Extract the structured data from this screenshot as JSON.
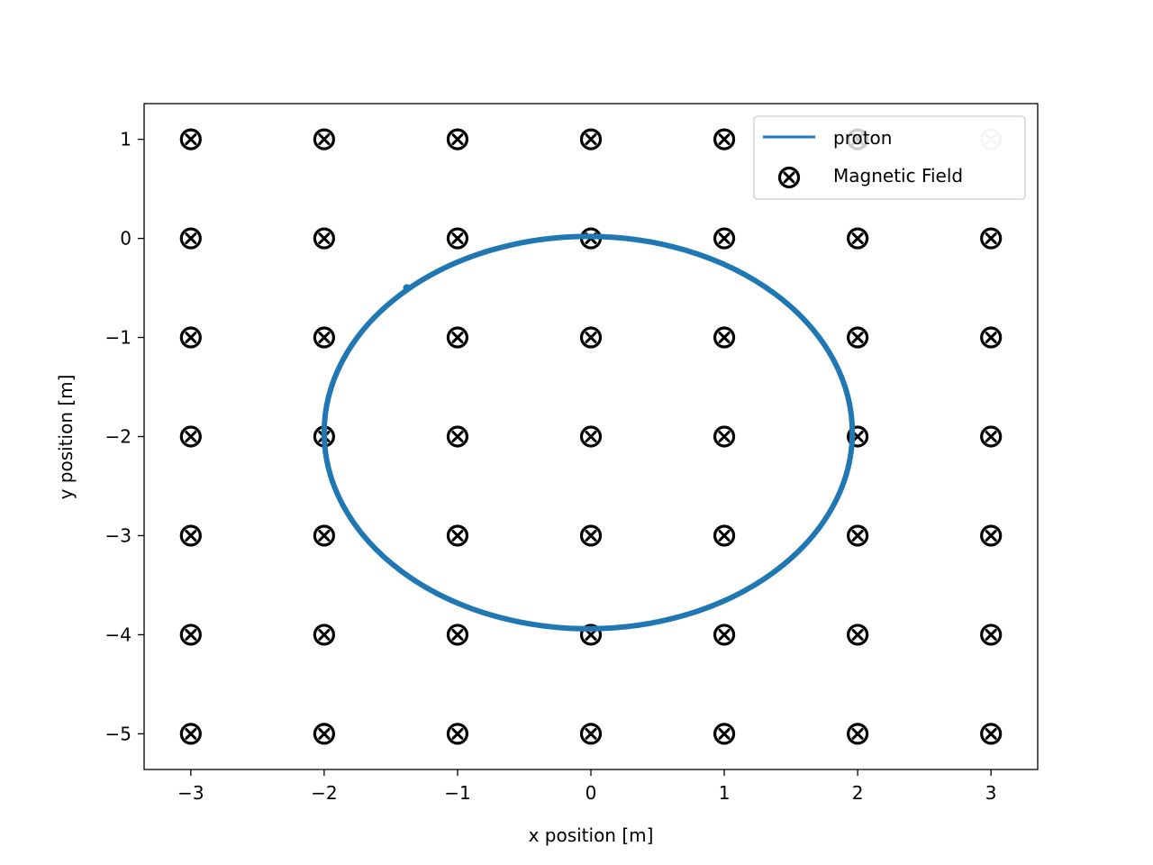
{
  "chart_data": {
    "type": "scatter",
    "title": "",
    "xlabel": "x position [m]",
    "ylabel": "y position [m]",
    "xlim": [
      -3.35,
      3.35
    ],
    "ylim": [
      -5.36,
      1.36
    ],
    "grid": false,
    "legend_position": "top-right",
    "xticks": [
      -3,
      -2,
      -1,
      0,
      1,
      2,
      3
    ],
    "xtick_labels": [
      "−3",
      "−2",
      "−1",
      "0",
      "1",
      "2",
      "3"
    ],
    "yticks": [
      1,
      0,
      -1,
      -2,
      -3,
      -4,
      -5
    ],
    "ytick_labels": [
      "1",
      "0",
      "−1",
      "−2",
      "−3",
      "−4",
      "−5"
    ],
    "series": [
      {
        "name": "proton",
        "kind": "line",
        "color": "#1f77b4",
        "path": {
          "shape": "circle",
          "center": [
            -0.02,
            -1.96
          ],
          "radius_x": 1.98,
          "radius_y": 1.98,
          "start_point": [
            -1.38,
            -0.5
          ]
        }
      },
      {
        "name": "Magnetic Field",
        "kind": "scatter",
        "marker": "circle-x",
        "color": "#000000",
        "x": [
          -3,
          -2,
          -1,
          0,
          1,
          2,
          3
        ],
        "y": [
          1,
          0,
          -1,
          -2,
          -3,
          -4,
          -5
        ]
      }
    ]
  }
}
